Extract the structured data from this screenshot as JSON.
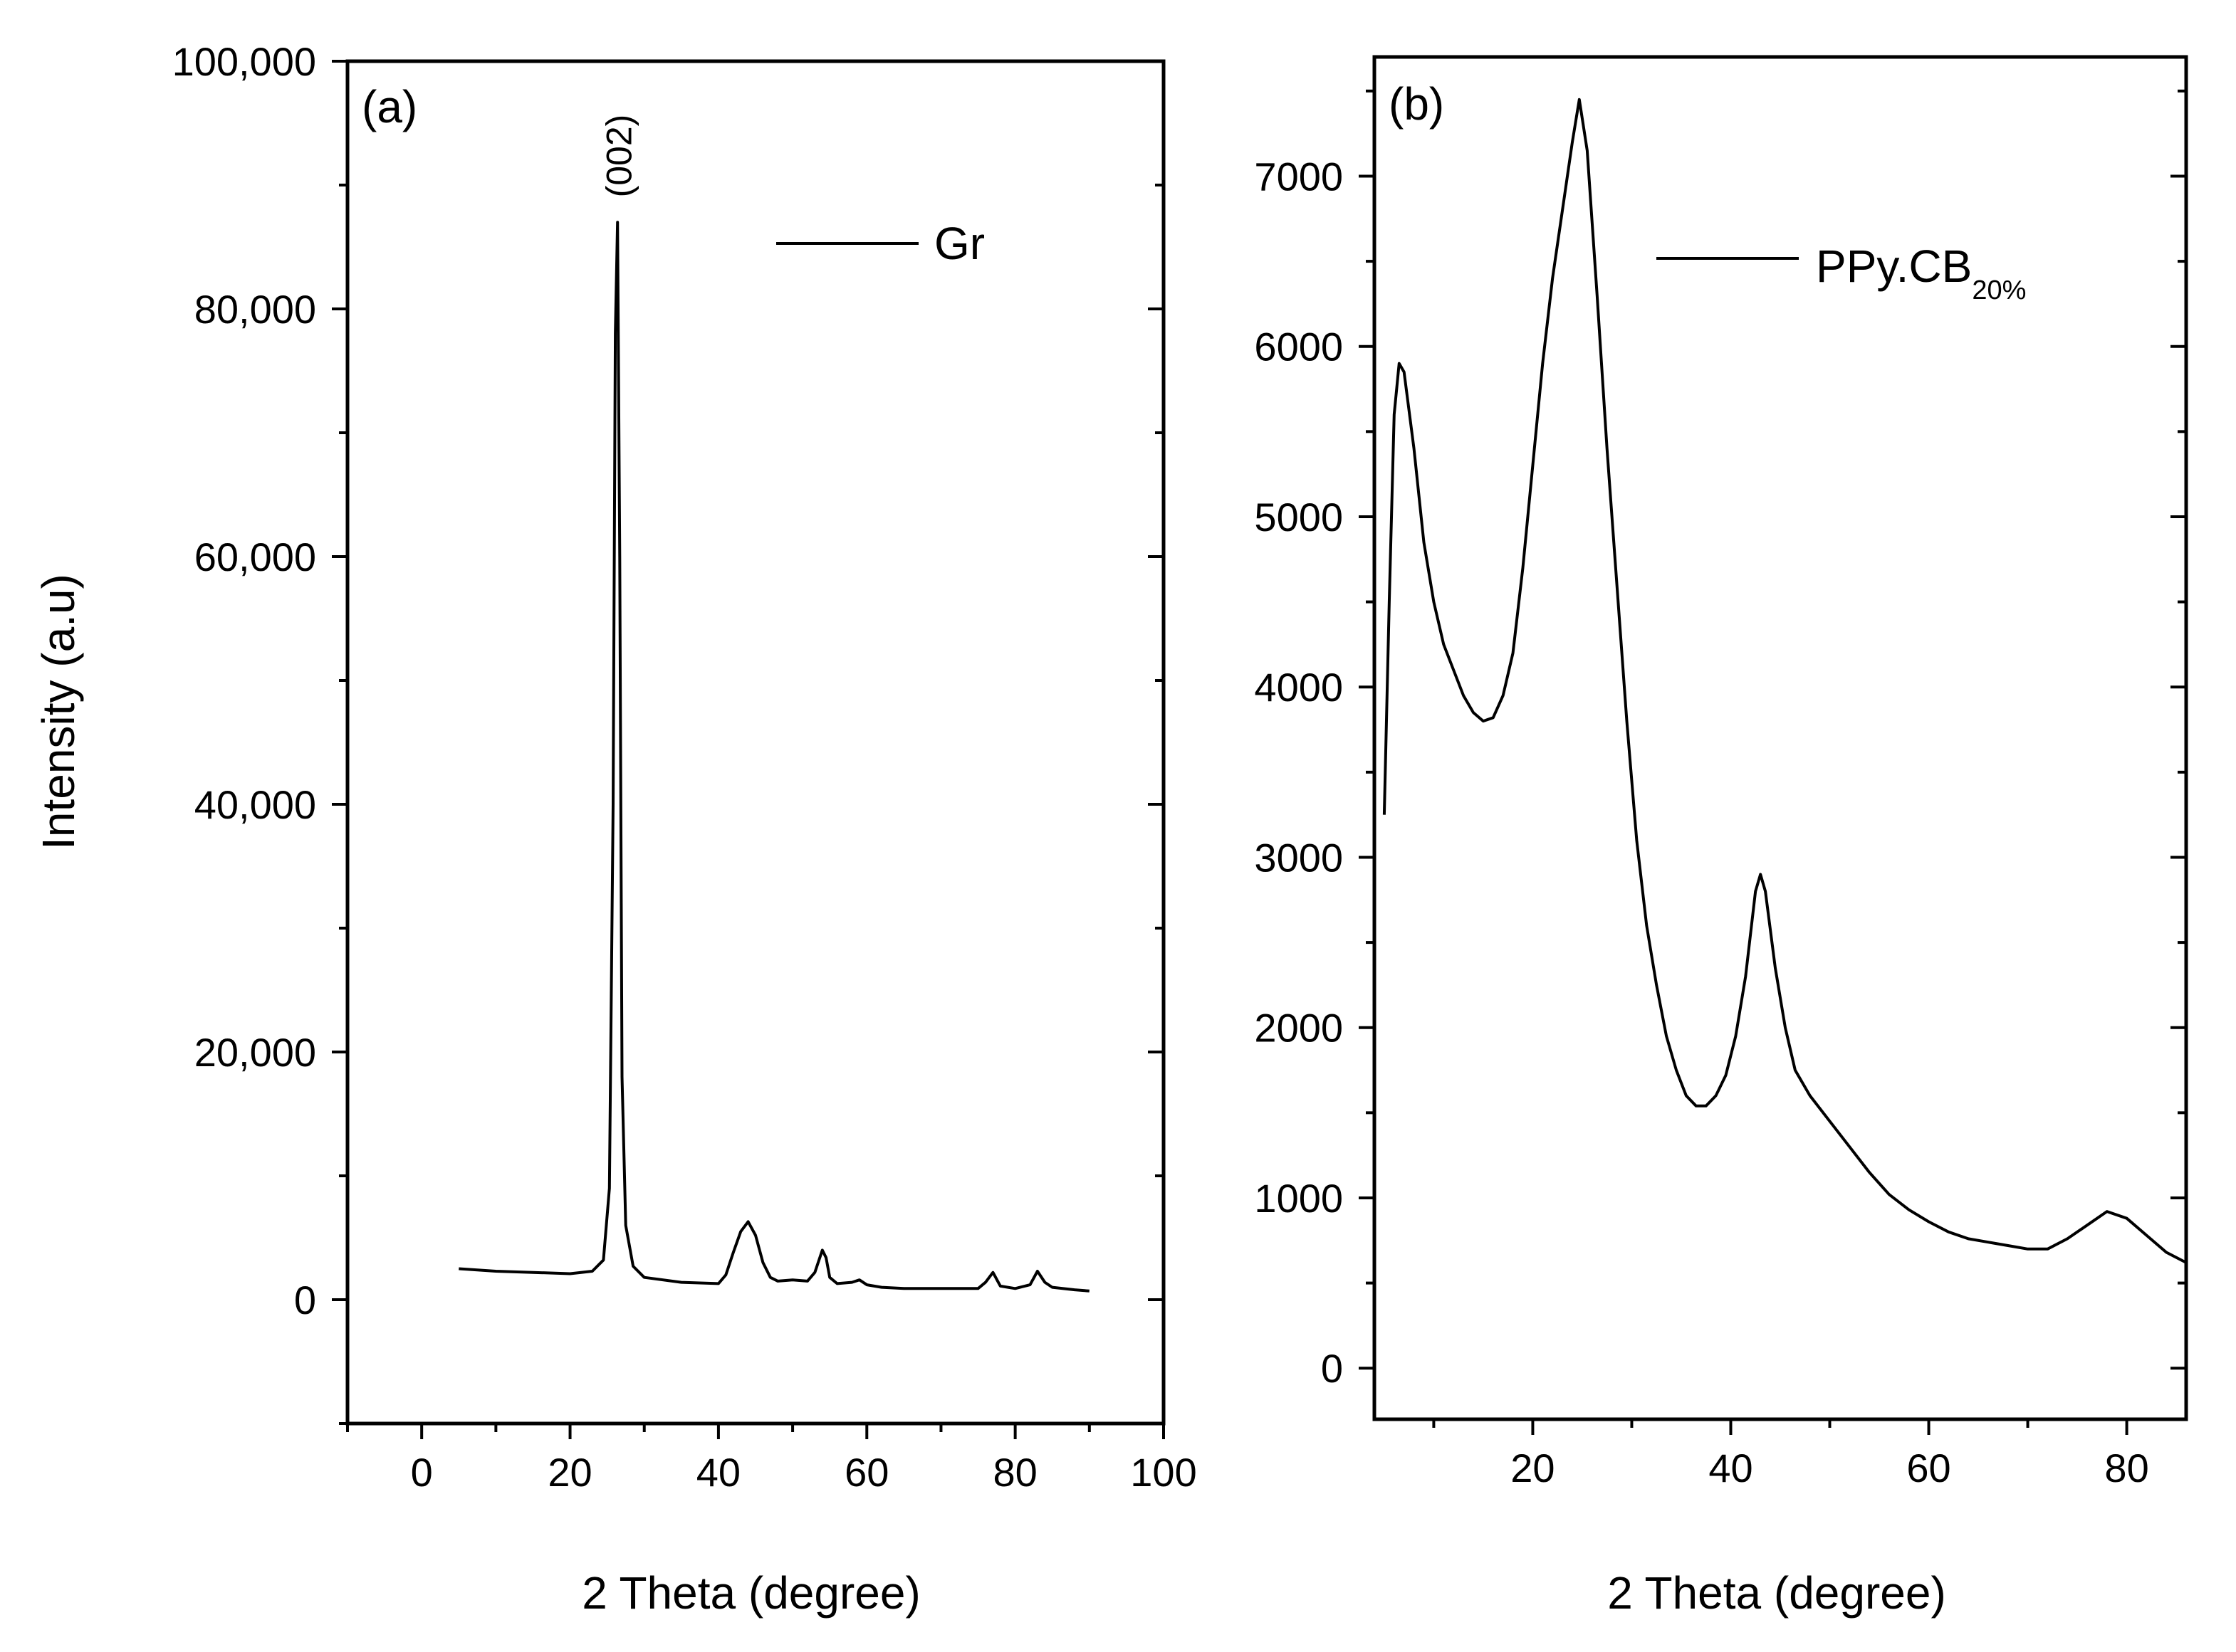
{
  "chart_data": [
    {
      "type": "line",
      "panel_label": "(a)",
      "xlabel": "2 Theta (degree)",
      "ylabel": "Intensity (a.u)",
      "xlim": [
        -10,
        100
      ],
      "ylim": [
        -10000,
        100000
      ],
      "x_ticks": [
        0,
        20,
        40,
        60,
        80,
        100
      ],
      "x_tick_labels": [
        "0",
        "20",
        "40",
        "60",
        "80",
        "100"
      ],
      "y_ticks": [
        0,
        20000,
        40000,
        60000,
        80000,
        100000
      ],
      "y_tick_labels": [
        "0",
        "20,000",
        "40,000",
        "60,000",
        "80,000",
        "100,000"
      ],
      "grid": false,
      "legend": {
        "position": "top-right",
        "entries": [
          "Gr"
        ]
      },
      "annotations": [
        {
          "text": "(002)",
          "x": 26.5,
          "y": 89000,
          "rotation": -90
        }
      ],
      "series": [
        {
          "name": "Gr",
          "x": [
            5,
            10,
            15,
            20,
            23,
            24.5,
            25.3,
            25.8,
            26.1,
            26.4,
            26.7,
            27.0,
            27.5,
            28.5,
            30,
            35,
            40,
            41,
            42,
            43,
            44,
            45,
            46,
            47,
            48,
            50,
            52,
            53,
            54,
            54.5,
            55,
            56,
            58,
            59,
            60,
            62,
            65,
            70,
            75,
            76,
            77,
            78,
            80,
            82,
            83,
            84,
            85,
            88,
            90
          ],
          "y": [
            2500,
            2300,
            2200,
            2100,
            2300,
            3200,
            9000,
            40000,
            78000,
            87000,
            60000,
            18000,
            6000,
            2700,
            1800,
            1400,
            1300,
            2000,
            3800,
            5500,
            6300,
            5200,
            3000,
            1800,
            1500,
            1600,
            1500,
            2200,
            4000,
            3400,
            1800,
            1300,
            1400,
            1600,
            1200,
            1000,
            900,
            900,
            900,
            1400,
            2200,
            1100,
            900,
            1200,
            2300,
            1400,
            1000,
            800,
            700
          ]
        }
      ]
    },
    {
      "type": "line",
      "panel_label": "(b)",
      "xlabel": "2 Theta (degree)",
      "ylabel": "",
      "xlim": [
        4,
        86
      ],
      "ylim": [
        -300,
        7700
      ],
      "x_ticks": [
        20,
        40,
        60,
        80
      ],
      "x_tick_labels": [
        "20",
        "40",
        "60",
        "80"
      ],
      "y_ticks": [
        0,
        1000,
        2000,
        3000,
        4000,
        5000,
        6000,
        7000
      ],
      "y_tick_labels": [
        "0",
        "1000",
        "2000",
        "3000",
        "4000",
        "5000",
        "6000",
        "7000"
      ],
      "grid": false,
      "legend": {
        "position": "top-right",
        "entries": [
          "PPy.CB20%"
        ],
        "label_main": "PPy.CB",
        "label_sub": "20%"
      },
      "series": [
        {
          "name": "PPy.CB20%",
          "x": [
            5,
            5.5,
            6,
            6.5,
            7,
            8,
            9,
            10,
            11,
            12,
            13,
            14,
            15,
            16,
            17,
            18,
            19,
            20,
            21,
            22,
            23,
            24,
            24.7,
            25.5,
            26.5,
            27.5,
            28.5,
            29.5,
            30.5,
            31.5,
            32.5,
            33.5,
            34.5,
            35.5,
            36.5,
            37.5,
            38.5,
            39.5,
            40.5,
            41.5,
            42.5,
            43,
            43.5,
            44.5,
            45.5,
            46.5,
            48,
            50,
            52,
            54,
            56,
            58,
            60,
            62,
            64,
            66,
            68,
            70,
            72,
            74,
            76,
            78,
            80,
            82,
            84,
            86
          ],
          "y": [
            3250,
            4500,
            5600,
            5900,
            5850,
            5400,
            4850,
            4500,
            4250,
            4100,
            3950,
            3850,
            3800,
            3820,
            3950,
            4200,
            4700,
            5300,
            5900,
            6400,
            6800,
            7200,
            7450,
            7150,
            6300,
            5400,
            4600,
            3800,
            3100,
            2600,
            2250,
            1950,
            1750,
            1600,
            1540,
            1540,
            1600,
            1720,
            1950,
            2300,
            2800,
            2900,
            2800,
            2350,
            2000,
            1750,
            1600,
            1450,
            1300,
            1150,
            1020,
            930,
            860,
            800,
            760,
            740,
            720,
            700,
            700,
            760,
            840,
            920,
            880,
            780,
            680,
            620
          ]
        }
      ]
    }
  ]
}
